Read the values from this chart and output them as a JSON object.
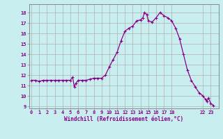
{
  "title": "",
  "xlabel": "Windchill (Refroidissement éolien,°C)",
  "ylabel": "",
  "bg_color": "#c8eef0",
  "grid_color": "#b0b0b0",
  "line_color": "#880088",
  "marker_color": "#880088",
  "xlim": [
    -0.3,
    24.0
  ],
  "ylim": [
    8.8,
    18.8
  ],
  "yticks": [
    9,
    10,
    11,
    12,
    13,
    14,
    15,
    16,
    17,
    18
  ],
  "xticks": [
    0,
    1,
    2,
    3,
    4,
    5,
    6,
    7,
    8,
    9,
    10,
    11,
    12,
    13,
    14,
    15,
    16,
    17,
    18,
    22,
    23
  ],
  "x": [
    0,
    0.5,
    1,
    1.5,
    2,
    2.5,
    3,
    3.5,
    4,
    4.5,
    5,
    5.3,
    5.5,
    5.7,
    6,
    6.5,
    7,
    7.5,
    8,
    8.5,
    9,
    9.5,
    10,
    10.5,
    11,
    11.5,
    12,
    12.5,
    13,
    13.5,
    14,
    14.3,
    14.5,
    14.8,
    15,
    15.5,
    16,
    16.5,
    17,
    17.5,
    18,
    18.5,
    19,
    19.5,
    20,
    20.5,
    21,
    21.5,
    22,
    22.3,
    22.5,
    22.7,
    23,
    23.3
  ],
  "y": [
    11.5,
    11.5,
    11.4,
    11.5,
    11.5,
    11.5,
    11.5,
    11.5,
    11.5,
    11.5,
    11.5,
    11.8,
    10.9,
    11.2,
    11.5,
    11.5,
    11.5,
    11.6,
    11.7,
    11.7,
    11.7,
    12.0,
    12.8,
    13.5,
    14.2,
    15.3,
    16.2,
    16.5,
    16.7,
    17.2,
    17.3,
    17.5,
    18.0,
    17.8,
    17.2,
    17.1,
    17.5,
    18.0,
    17.7,
    17.5,
    17.2,
    16.5,
    15.5,
    14.0,
    12.5,
    11.5,
    10.9,
    10.3,
    10.0,
    9.7,
    9.5,
    9.8,
    9.3,
    9.1
  ]
}
